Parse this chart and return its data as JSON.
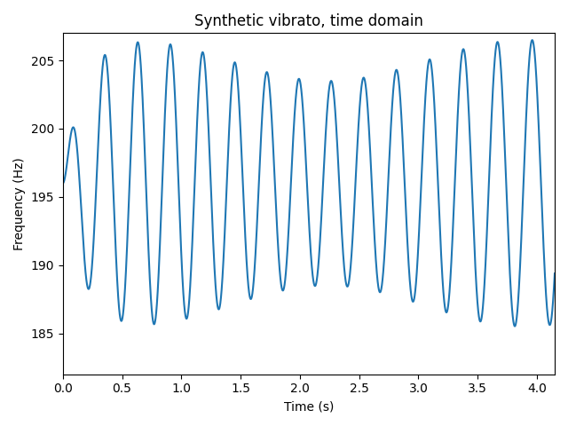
{
  "title": "Synthetic vibrato, time domain",
  "xlabel": "Time (s)",
  "ylabel": "Frequency (Hz)",
  "line_color": "#1f77b4",
  "line_width": 1.5,
  "xlim": [
    0.0,
    4.15
  ],
  "ylim": [
    182,
    207
  ],
  "base_freq": 196.0,
  "vibrato_depth": 9.0,
  "vibrato_rate": 3.5,
  "duration": 4.15,
  "sample_rate": 4000,
  "xticks": [
    0.0,
    0.5,
    1.0,
    1.5,
    2.0,
    2.5,
    3.0,
    3.5,
    4.0
  ],
  "yticks": [
    185,
    190,
    195,
    200,
    205
  ],
  "figsize": [
    6.4,
    4.8
  ]
}
